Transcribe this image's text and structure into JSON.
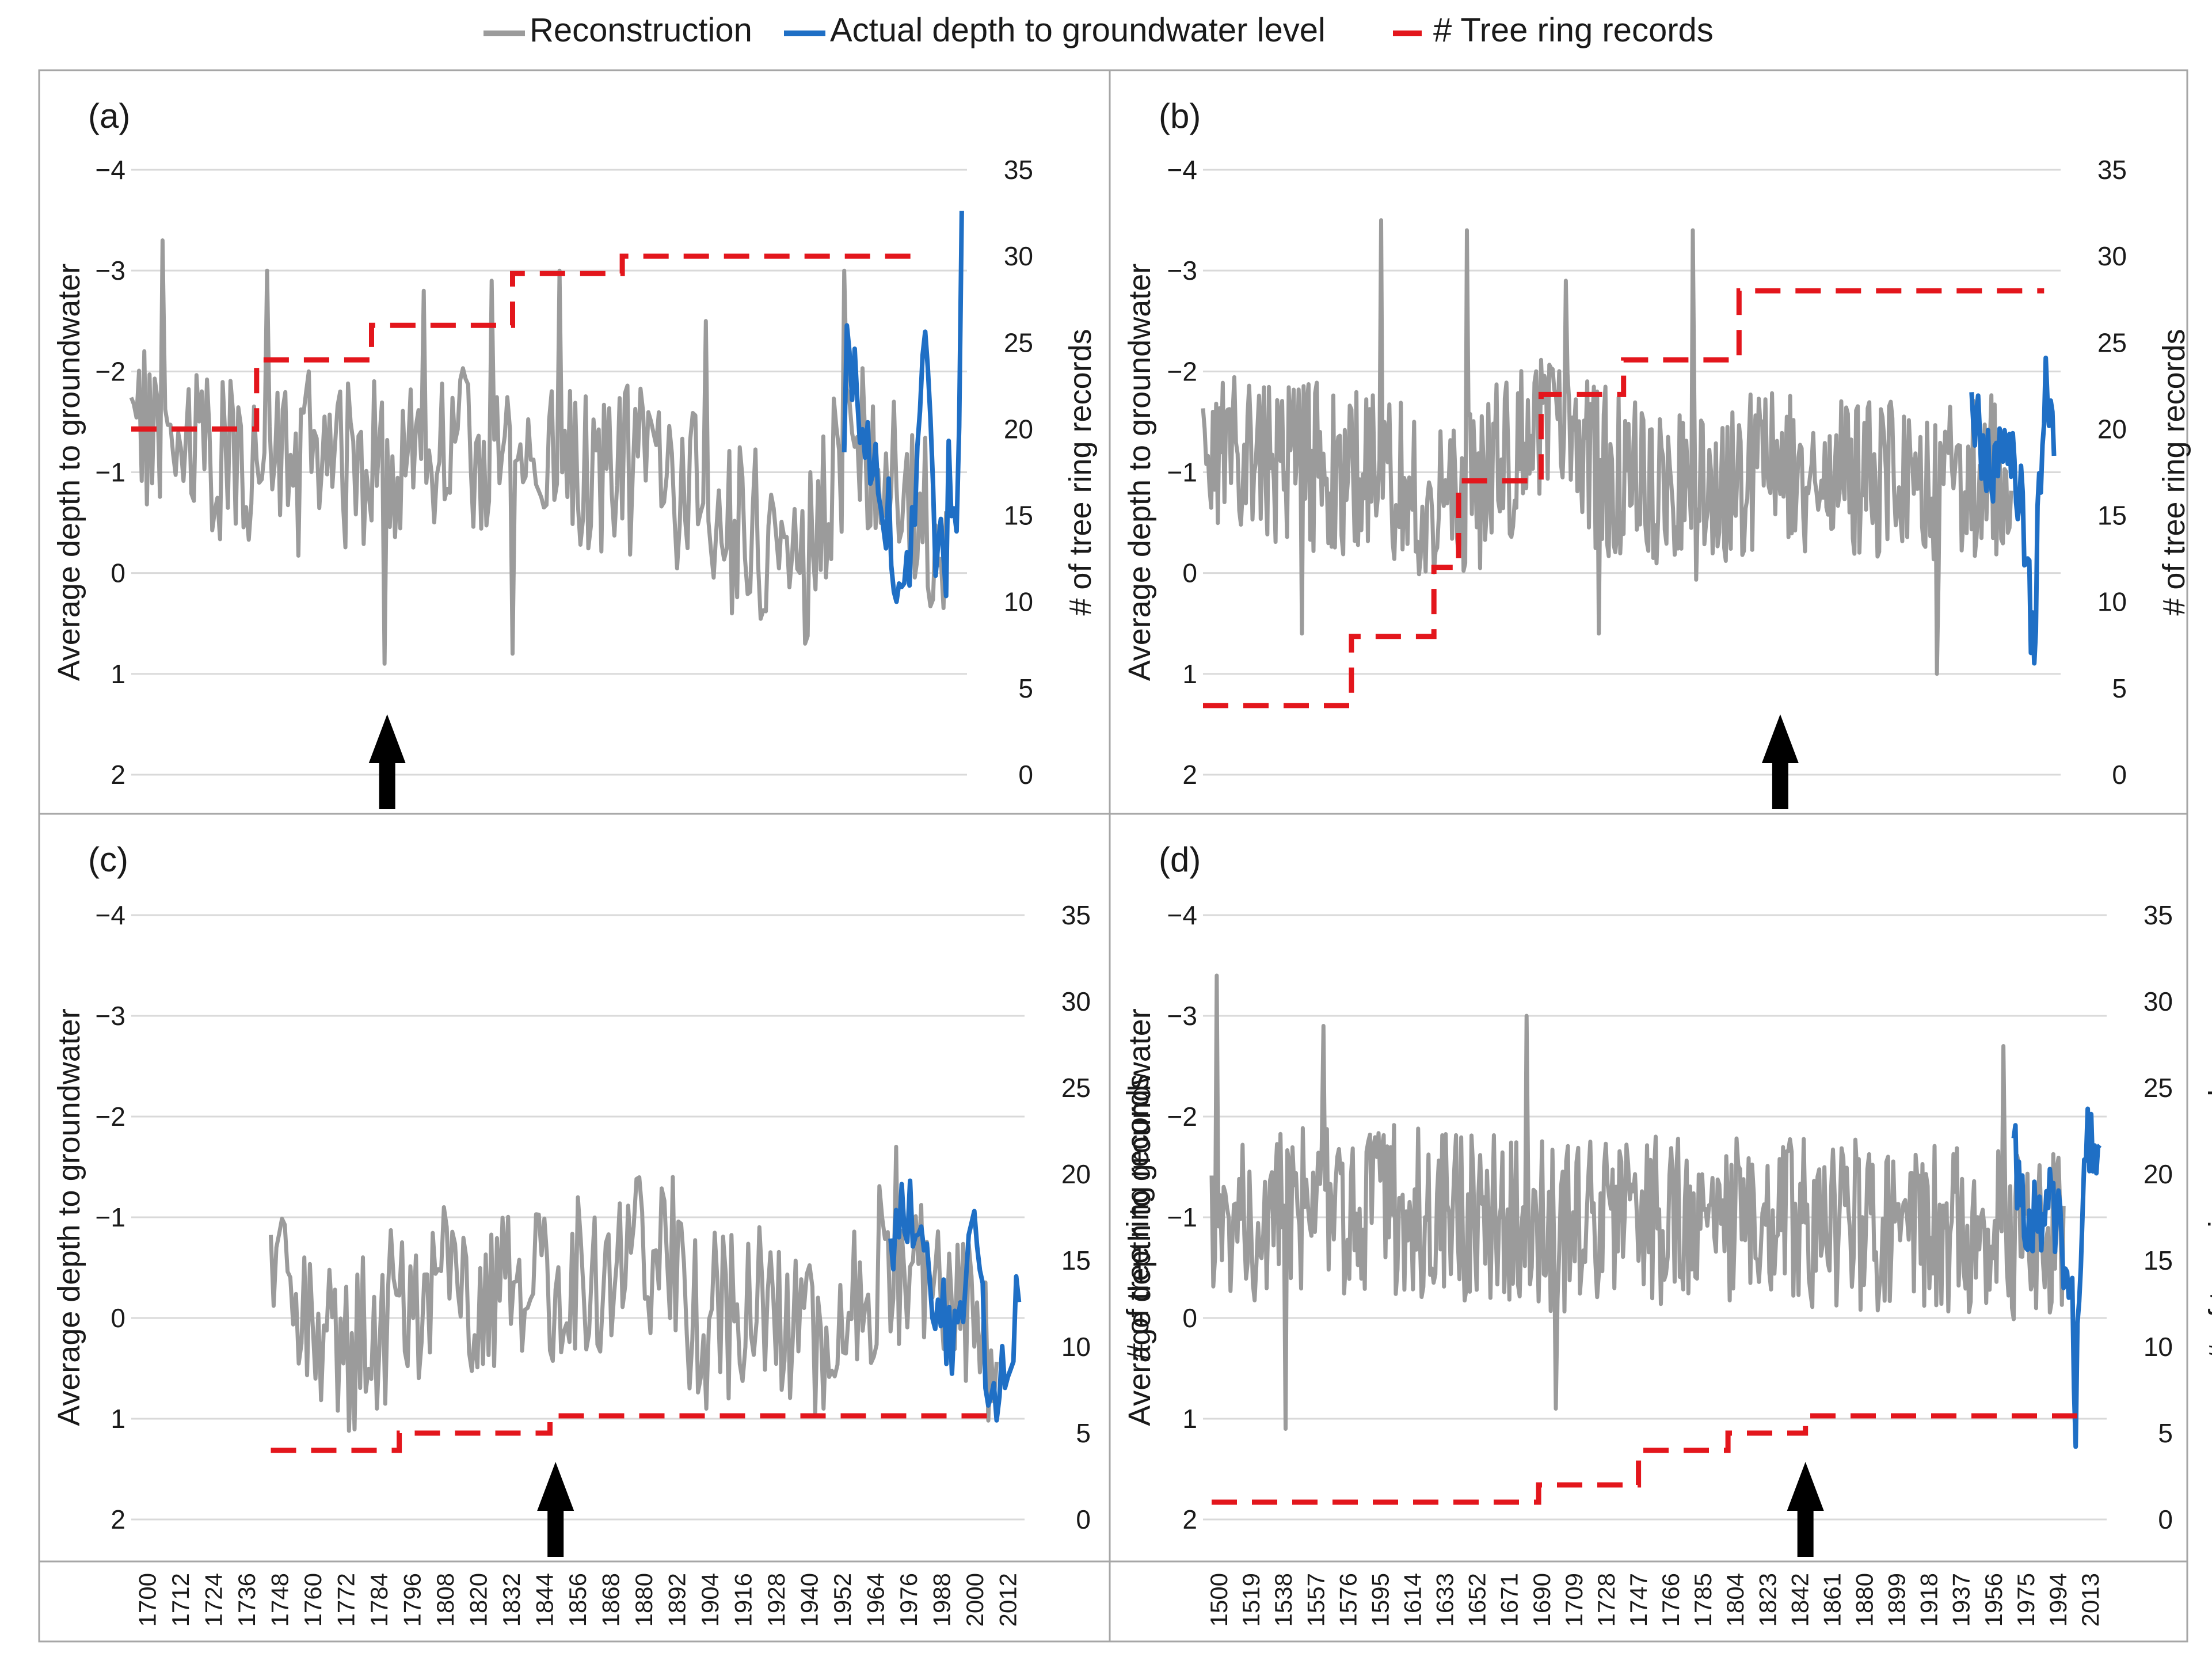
{
  "legend": {
    "reconstruction": "Reconstruction",
    "actual": "Actual depth to groundwater level",
    "tree_rings": "# Tree ring records"
  },
  "colors": {
    "reconstruction": "#9b9b9b",
    "actual": "#1f6fc5",
    "tree_rings": "#e3161c",
    "frame": "#a6a6a6",
    "gridline": "#d9d9d9",
    "arrow": "#000000",
    "text": "#1a1a1a"
  },
  "chart_data": [
    {
      "panel": "(a)",
      "type": "line",
      "ylabel": "Average depth to groundwater",
      "y2label": "# of tree ring records",
      "ylim": [
        2,
        -4
      ],
      "yticks": [
        2,
        1,
        0,
        -1,
        -2,
        -3,
        -4
      ],
      "y2lim": [
        0,
        35
      ],
      "y2ticks": [
        0,
        5,
        10,
        15,
        20,
        25,
        30,
        35
      ],
      "xlim": [
        1700,
        2020
      ],
      "xticks": [
        1700,
        1712,
        1724,
        1736,
        1748,
        1760,
        1772,
        1784,
        1796,
        1808,
        1820,
        1832,
        1844,
        1856,
        1868,
        1880,
        1892,
        1904,
        1916,
        1928,
        1940,
        1952,
        1964,
        1976,
        1988,
        2000,
        2012
      ],
      "seed": 11,
      "reconstruction": {
        "start": 1700,
        "end": 2012,
        "anchors": [
          [
            1700,
            -1.3
          ],
          [
            1760,
            -1.0
          ],
          [
            1820,
            -1.2
          ],
          [
            1900,
            -1.0
          ],
          [
            1940,
            -0.4
          ],
          [
            1960,
            -0.2
          ],
          [
            1975,
            -1.5
          ],
          [
            2012,
            -0.3
          ]
        ],
        "spikes": [
          [
            1705,
            -2.2
          ],
          [
            1712,
            -3.3
          ],
          [
            1752,
            -3.0
          ],
          [
            1768,
            -2.0
          ],
          [
            1797,
            0.9
          ],
          [
            1812,
            -2.8
          ],
          [
            1838,
            -2.9
          ],
          [
            1846,
            0.8
          ],
          [
            1864,
            -3.0
          ],
          [
            1920,
            -2.5
          ],
          [
            1973,
            -3.0
          ],
          [
            1930,
            0.4
          ],
          [
            1958,
            0.7
          ]
        ]
      },
      "actual": {
        "start": 1973,
        "end": 2018,
        "anchors": [
          [
            1973,
            -1.0
          ],
          [
            1974,
            -2.4
          ],
          [
            1980,
            -1.2
          ],
          [
            1990,
            -0.5
          ],
          [
            1996,
            0.3
          ],
          [
            2000,
            -0.5
          ],
          [
            2004,
            -2.3
          ],
          [
            2008,
            -0.4
          ],
          [
            2012,
            -0.2
          ],
          [
            2013,
            -1.1
          ],
          [
            2016,
            -0.1
          ],
          [
            2018,
            -3.2
          ]
        ]
      },
      "tree_rings": [
        [
          1700,
          20
        ],
        [
          1748,
          20
        ],
        [
          1748,
          24
        ],
        [
          1792,
          24
        ],
        [
          1792,
          26
        ],
        [
          1846,
          26
        ],
        [
          1846,
          29
        ],
        [
          1888,
          29
        ],
        [
          1888,
          30
        ],
        [
          2000,
          30
        ]
      ],
      "arrow_year": 1798
    },
    {
      "panel": "(b)",
      "type": "line",
      "ylabel": "Average depth to groundwater",
      "y2label": "# of tree ring records",
      "ylim": [
        2,
        -4
      ],
      "yticks": [
        2,
        1,
        0,
        -1,
        -2,
        -3,
        -4
      ],
      "y2lim": [
        0,
        35
      ],
      "y2ticks": [
        0,
        5,
        10,
        15,
        20,
        25,
        30,
        35
      ],
      "xlim": [
        1500,
        2020
      ],
      "xticks": [],
      "seed": 23,
      "reconstruction": {
        "start": 1500,
        "end": 1990,
        "anchors": [
          [
            1500,
            -1.2
          ],
          [
            1600,
            -1.0
          ],
          [
            1650,
            -0.6
          ],
          [
            1700,
            -1.4
          ],
          [
            1780,
            -0.7
          ],
          [
            1850,
            -1.0
          ],
          [
            1950,
            -0.8
          ],
          [
            1990,
            -1.1
          ]
        ],
        "spikes": [
          [
            1608,
            -3.5
          ],
          [
            1660,
            -3.4
          ],
          [
            1720,
            -2.9
          ],
          [
            1797,
            -3.4
          ],
          [
            1740,
            0.6
          ],
          [
            1945,
            1.0
          ],
          [
            1560,
            0.6
          ]
        ]
      },
      "actual": {
        "start": 1966,
        "end": 2016,
        "anchors": [
          [
            1966,
            -1.6
          ],
          [
            1975,
            -1.0
          ],
          [
            1985,
            -1.2
          ],
          [
            1996,
            -0.8
          ],
          [
            2002,
            0.5
          ],
          [
            2004,
            1.0
          ],
          [
            2007,
            -0.9
          ],
          [
            2010,
            -1.9
          ],
          [
            2013,
            -1.4
          ],
          [
            2016,
            -1.6
          ]
        ]
      },
      "tree_rings": [
        [
          1500,
          4
        ],
        [
          1590,
          4
        ],
        [
          1590,
          8
        ],
        [
          1640,
          8
        ],
        [
          1640,
          12
        ],
        [
          1655,
          12
        ],
        [
          1655,
          17
        ],
        [
          1705,
          17
        ],
        [
          1705,
          22
        ],
        [
          1755,
          22
        ],
        [
          1755,
          24
        ],
        [
          1825,
          24
        ],
        [
          1825,
          28
        ],
        [
          2010,
          28
        ]
      ],
      "arrow_year": 1850
    },
    {
      "panel": "(c)",
      "type": "line",
      "ylabel": "Average depth to groundwater",
      "y2label": "# of tree ring records",
      "ylim": [
        2,
        -4
      ],
      "yticks": [
        2,
        1,
        0,
        -1,
        -2,
        -3,
        -4
      ],
      "y2lim": [
        0,
        35
      ],
      "y2ticks": [
        0,
        5,
        10,
        15,
        20,
        25,
        30,
        35
      ],
      "xlim": [
        1700,
        2020
      ],
      "xticks": [
        1700,
        1712,
        1724,
        1736,
        1748,
        1760,
        1772,
        1784,
        1796,
        1808,
        1820,
        1832,
        1844,
        1856,
        1868,
        1880,
        1892,
        1904,
        1916,
        1928,
        1940,
        1952,
        1964,
        1976,
        1988,
        2000,
        2012
      ],
      "seed": 37,
      "reconstruction": {
        "start": 1750,
        "end": 2010,
        "anchors": [
          [
            1750,
            -0.4
          ],
          [
            1760,
            0.1
          ],
          [
            1780,
            0.3
          ],
          [
            1800,
            -0.2
          ],
          [
            1850,
            -0.3
          ],
          [
            1885,
            -0.7
          ],
          [
            1900,
            0.0
          ],
          [
            1930,
            -0.1
          ],
          [
            1950,
            0.3
          ],
          [
            1970,
            -0.6
          ],
          [
            1990,
            -0.3
          ],
          [
            2010,
            0.3
          ]
        ],
        "spikes": [
          [
            1752,
            -0.7
          ],
          [
            1812,
            -1.1
          ],
          [
            1894,
            -1.4
          ],
          [
            1974,
            -1.7
          ],
          [
            1788,
            0.9
          ],
          [
            1906,
            0.9
          ],
          [
            1948,
            0.9
          ]
        ]
      },
      "actual": {
        "start": 1972,
        "end": 2018,
        "anchors": [
          [
            1972,
            -0.6
          ],
          [
            1976,
            -1.2
          ],
          [
            1984,
            -0.6
          ],
          [
            1990,
            0.0
          ],
          [
            1996,
            0.3
          ],
          [
            2002,
            -1.0
          ],
          [
            2006,
            0.4
          ],
          [
            2010,
            0.6
          ],
          [
            2014,
            0.3
          ],
          [
            2016,
            0.5
          ],
          [
            2018,
            -0.5
          ]
        ]
      },
      "tree_rings": [
        [
          1750,
          4
        ],
        [
          1796,
          4
        ],
        [
          1796,
          5
        ],
        [
          1850,
          5
        ],
        [
          1850,
          6
        ],
        [
          2008,
          6
        ]
      ],
      "arrow_year": 1852
    },
    {
      "panel": "(d)",
      "type": "line",
      "ylabel": "Average depth to groundwater",
      "y2label": "# of tree ring records",
      "ylim": [
        2,
        -4
      ],
      "yticks": [
        2,
        1,
        0,
        -1,
        -2,
        -3,
        -4
      ],
      "y2lim": [
        0,
        35
      ],
      "y2ticks": [
        0,
        5,
        10,
        15,
        20,
        25,
        30,
        35
      ],
      "xlim": [
        1495,
        2020
      ],
      "xticks": [
        1500,
        1519,
        1538,
        1557,
        1576,
        1595,
        1614,
        1633,
        1652,
        1671,
        1690,
        1709,
        1728,
        1747,
        1766,
        1785,
        1804,
        1823,
        1842,
        1861,
        1880,
        1899,
        1918,
        1937,
        1956,
        1975,
        1994,
        2013
      ],
      "seed": 51,
      "reconstruction": {
        "start": 1500,
        "end": 1995,
        "anchors": [
          [
            1500,
            -1.0
          ],
          [
            1600,
            -1.1
          ],
          [
            1700,
            -0.9
          ],
          [
            1800,
            -1.0
          ],
          [
            1900,
            -0.9
          ],
          [
            1995,
            -0.8
          ]
        ],
        "spikes": [
          [
            1503,
            -3.4
          ],
          [
            1565,
            -2.9
          ],
          [
            1683,
            -3.0
          ],
          [
            1960,
            -2.7
          ],
          [
            1543,
            1.1
          ],
          [
            1700,
            0.9
          ]
        ]
      },
      "actual": {
        "start": 1966,
        "end": 2016,
        "anchors": [
          [
            1966,
            -1.6
          ],
          [
            1975,
            -0.9
          ],
          [
            1985,
            -1.2
          ],
          [
            1994,
            -0.8
          ],
          [
            2000,
            -0.3
          ],
          [
            2002,
            1.0
          ],
          [
            2005,
            -0.8
          ],
          [
            2009,
            -2.0
          ],
          [
            2012,
            -1.4
          ],
          [
            2016,
            -1.6
          ]
        ]
      },
      "tree_rings": [
        [
          1500,
          1
        ],
        [
          1690,
          1
        ],
        [
          1690,
          2
        ],
        [
          1748,
          2
        ],
        [
          1748,
          4
        ],
        [
          1800,
          4
        ],
        [
          1800,
          5
        ],
        [
          1845,
          5
        ],
        [
          1845,
          6
        ],
        [
          2004,
          6
        ]
      ],
      "arrow_year": 1845
    }
  ]
}
